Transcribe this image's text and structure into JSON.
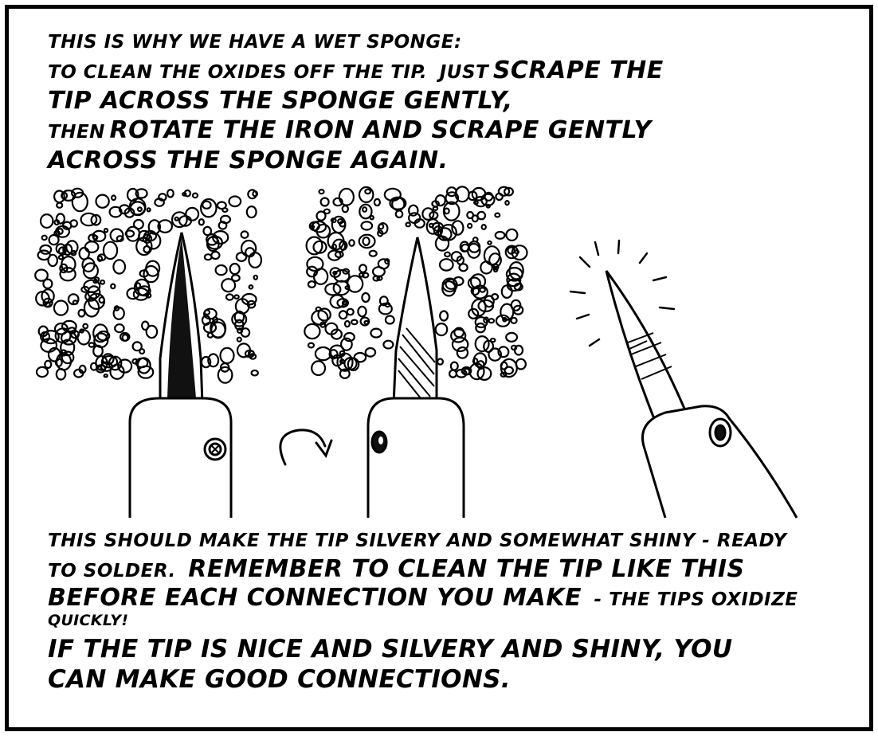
{
  "caption_top": {
    "l1": "THIS IS WHY WE HAVE A WET SPONGE:",
    "l2a": "TO CLEAN THE OXIDES OFF THE TIP.",
    "l2b": "JUST",
    "l2c": "SCRAPE THE",
    "l3": "TIP ACROSS THE SPONGE GENTLY,",
    "l4a": "THEN",
    "l4b": "ROTATE THE IRON AND SCRAPE GENTLY",
    "l5": "ACROSS THE SPONGE AGAIN."
  },
  "caption_bottom": {
    "l1": "THIS SHOULD MAKE THE TIP SILVERY AND SOMEWHAT SHINY - READY",
    "l2a": "TO SOLDER.",
    "l2b": "REMEMBER TO CLEAN THE TIP LIKE THIS",
    "l3a": "BEFORE EACH CONNECTION YOU MAKE",
    "l3b": "- THE TIPS OXIDIZE",
    "l4": "QUICKLY!",
    "l5": "IF THE TIP IS NICE AND SILVERY AND SHINY, YOU",
    "l6": "CAN MAKE GOOD CONNECTIONS."
  }
}
